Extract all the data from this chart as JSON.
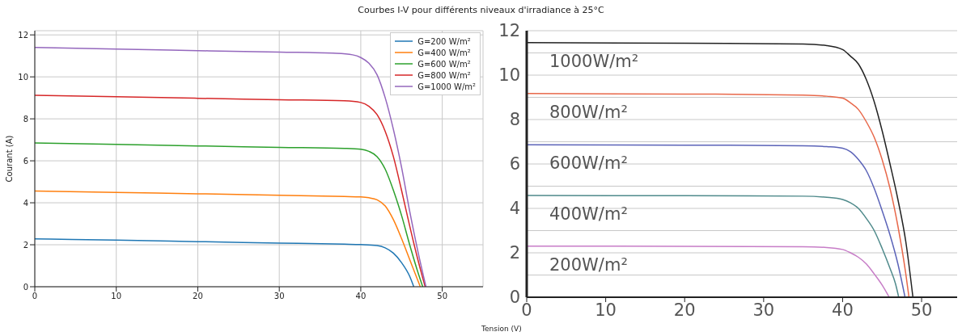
{
  "chart_data": [
    {
      "type": "line",
      "title": "Courbes I-V pour différents niveaux  d'irradiance  à 25°C",
      "ylabel": "Courant (A)",
      "xlim": [
        0,
        55
      ],
      "ylim": [
        0,
        12.2
      ],
      "xticks": [
        0,
        10,
        20,
        30,
        40,
        50
      ],
      "yticks": [
        0,
        2,
        4,
        6,
        8,
        10,
        12
      ],
      "grid": true,
      "legend": "top right",
      "marker": "none",
      "line_style": "solid",
      "series": [
        {
          "name": "G=200 W/m²",
          "color": "#1f77b4",
          "x": [
            0,
            10,
            20,
            30,
            38,
            40,
            42,
            43,
            44,
            45,
            46,
            46.5
          ],
          "values": [
            2.28,
            2.22,
            2.15,
            2.08,
            2.03,
            2.01,
            1.96,
            1.85,
            1.6,
            1.15,
            0.5,
            0
          ]
        },
        {
          "name": "G=400 W/m²",
          "color": "#ff7f0e",
          "x": [
            0,
            10,
            20,
            30,
            38,
            40,
            41,
            42,
            43,
            44,
            45,
            46,
            47,
            47.3
          ],
          "values": [
            4.56,
            4.49,
            4.43,
            4.36,
            4.3,
            4.28,
            4.24,
            4.14,
            3.85,
            3.2,
            2.3,
            1.3,
            0.3,
            0
          ]
        },
        {
          "name": "G=600 W/m²",
          "color": "#2ca02c",
          "x": [
            0,
            10,
            20,
            30,
            38,
            40,
            41,
            42,
            43,
            44,
            45,
            46,
            47,
            47.6
          ],
          "values": [
            6.85,
            6.78,
            6.71,
            6.64,
            6.59,
            6.55,
            6.45,
            6.2,
            5.6,
            4.6,
            3.4,
            2.0,
            0.7,
            0
          ]
        },
        {
          "name": "G=800 W/m²",
          "color": "#d62728",
          "x": [
            0,
            10,
            20,
            30,
            38,
            40,
            41,
            42,
            43,
            44,
            45,
            46,
            47,
            47.9
          ],
          "values": [
            9.12,
            9.05,
            8.98,
            8.91,
            8.86,
            8.78,
            8.6,
            8.2,
            7.4,
            6.2,
            4.6,
            2.9,
            1.3,
            0
          ]
        },
        {
          "name": "G=1000 W/m²",
          "color": "#9467bd",
          "x": [
            0,
            10,
            20,
            30,
            37,
            39,
            40,
            41,
            42,
            43,
            44,
            45,
            46,
            47,
            48
          ],
          "values": [
            11.4,
            11.32,
            11.25,
            11.18,
            11.12,
            11.05,
            10.92,
            10.65,
            10.1,
            9.0,
            7.5,
            5.7,
            3.6,
            1.7,
            0
          ]
        }
      ]
    },
    {
      "type": "line",
      "xlabel": "Tension (V)",
      "xlim": [
        0,
        54.5
      ],
      "ylim": [
        0,
        12
      ],
      "xticks": [
        0,
        10,
        20,
        30,
        40,
        50
      ],
      "yticks": [
        0,
        {
          "value": 1,
          "label": null
        },
        2,
        {
          "value": 3,
          "label": null
        },
        4,
        {
          "value": 5,
          "label": null
        },
        6,
        {
          "value": 7,
          "label": null
        },
        8,
        {
          "value": 9,
          "label": null
        },
        10,
        {
          "value": 11,
          "label": null
        },
        12
      ],
      "grid": "y",
      "marker": "none",
      "line_style": "solid",
      "series": [
        {
          "name": "1000W/m²",
          "color": "#222222",
          "x": [
            0,
            20,
            35,
            38,
            40,
            41,
            42,
            43,
            44,
            45,
            46,
            47,
            48,
            48.9
          ],
          "values": [
            11.46,
            11.44,
            11.4,
            11.33,
            11.15,
            10.85,
            10.5,
            9.8,
            8.8,
            7.5,
            6.0,
            4.4,
            2.5,
            0
          ]
        },
        {
          "name": "800W/m²",
          "color": "#e8684a",
          "x": [
            0,
            20,
            35,
            38,
            40,
            41,
            42,
            43,
            44,
            45,
            46,
            47,
            48,
            48.4
          ],
          "values": [
            9.17,
            9.15,
            9.1,
            9.05,
            8.96,
            8.75,
            8.45,
            7.9,
            7.2,
            6.2,
            4.9,
            3.2,
            1.05,
            0
          ]
        },
        {
          "name": "600W/m²",
          "color": "#5b63b8",
          "x": [
            0,
            20,
            35,
            38,
            40,
            41,
            42,
            43,
            44,
            45,
            46,
            47,
            47.9
          ],
          "values": [
            6.86,
            6.85,
            6.82,
            6.78,
            6.71,
            6.55,
            6.2,
            5.7,
            4.9,
            3.9,
            2.8,
            1.5,
            0
          ]
        },
        {
          "name": "400W/m²",
          "color": "#4f8a8b",
          "x": [
            0,
            20,
            35,
            38,
            40,
            41,
            42,
            43,
            44,
            45,
            46,
            46.7,
            47.1
          ],
          "values": [
            4.58,
            4.57,
            4.55,
            4.5,
            4.4,
            4.25,
            4.0,
            3.55,
            3.0,
            2.2,
            1.3,
            0.6,
            0
          ]
        },
        {
          "name": "200W/m²",
          "color": "#c77dc7",
          "x": [
            0,
            20,
            35,
            38,
            40,
            41,
            42,
            43,
            44,
            45,
            45.9
          ],
          "values": [
            2.3,
            2.29,
            2.27,
            2.24,
            2.15,
            2.0,
            1.8,
            1.5,
            1.05,
            0.55,
            0
          ]
        }
      ]
    }
  ]
}
